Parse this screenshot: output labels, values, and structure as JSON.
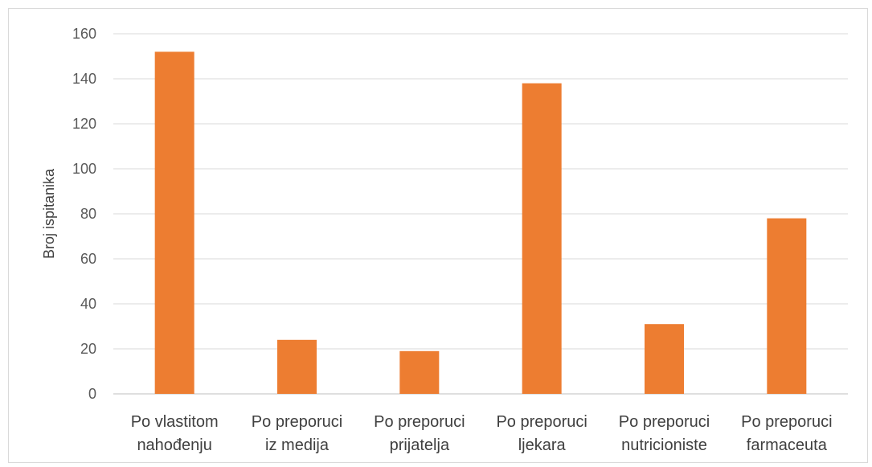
{
  "chart_data": {
    "type": "bar",
    "title": "",
    "xlabel": "",
    "ylabel": "Broj ispitanika",
    "ylim": [
      0,
      160
    ],
    "yticks": [
      0,
      20,
      40,
      60,
      80,
      100,
      120,
      140,
      160
    ],
    "grid": true,
    "legend": "none",
    "bar_color": "#ED7D31",
    "categories": [
      [
        "Po vlastitom",
        "nahođenju"
      ],
      [
        "Po preporuci",
        "iz medija"
      ],
      [
        "Po preporuci",
        "prijatelja"
      ],
      [
        "Po preporuci",
        "ljekara"
      ],
      [
        "Po preporuci",
        "nutricioniste"
      ],
      [
        "Po preporuci",
        "farmaceuta"
      ]
    ],
    "values": [
      152,
      24,
      19,
      138,
      31,
      78
    ]
  }
}
